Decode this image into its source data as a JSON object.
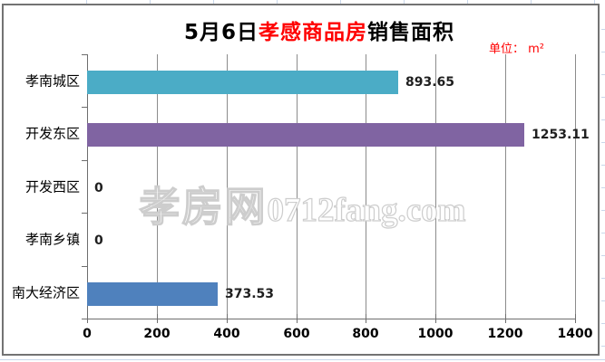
{
  "title": {
    "prefix": "5月6日",
    "highlight": "孝感商品房",
    "suffix": "销售面积",
    "highlight_color": "#FF0000"
  },
  "unit_label": "单位： m²",
  "watermark": {
    "cn": "孝房网",
    "en": "0712fang.com"
  },
  "chart_data": {
    "type": "bar",
    "orientation": "horizontal",
    "title": "5月6日孝感商品房销售面积",
    "categories": [
      "孝南城区",
      "开发东区",
      "开发西区",
      "孝南乡镇",
      "南大经济区"
    ],
    "values": [
      893.65,
      1253.11,
      0,
      0,
      373.53
    ],
    "value_labels": [
      "893.65",
      "1253.11",
      "0",
      "0",
      "373.53"
    ],
    "point_colors": [
      "#4BACC6",
      "#8064A2",
      "#9BBB59",
      "#C0504D",
      "#4F81BD"
    ],
    "x_ticks": [
      0,
      200,
      400,
      600,
      800,
      1000,
      1200,
      1400
    ],
    "x_tick_labels": [
      "0",
      "200",
      "400",
      "600",
      "800",
      "1000",
      "1200",
      "1400"
    ],
    "xlim": [
      0,
      1400
    ],
    "unit": "m²",
    "grid": "vertical-gridlines",
    "legend": "none",
    "data_labels": true
  },
  "colors": {
    "gridline": "#8c8c8c",
    "axis": "#6e6e6e",
    "frame_border": "#737373",
    "sheet_gridline": "#c9d7ea",
    "value_label": "#1f1f1f",
    "title_highlight": "#FF0000",
    "bar_teal": "#4BACC6",
    "bar_purple": "#8064A2",
    "bar_blue": "#4F81BD"
  }
}
